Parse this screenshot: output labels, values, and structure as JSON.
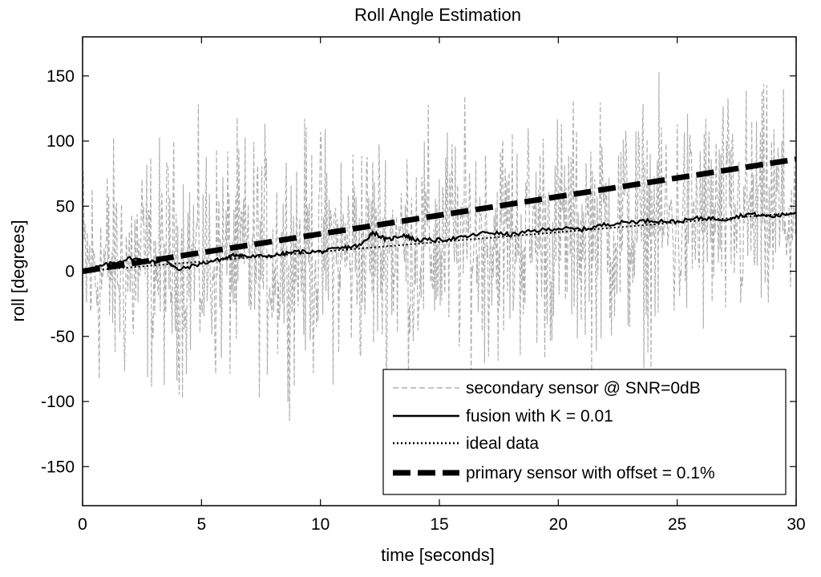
{
  "chart_data": {
    "type": "line",
    "title": "Roll Angle Estimation",
    "xlabel": "time [seconds]",
    "ylabel": "roll [degrees]",
    "xlim": [
      0,
      30
    ],
    "ylim": [
      -180,
      180
    ],
    "xticks": [
      0,
      5,
      10,
      15,
      20,
      25,
      30
    ],
    "yticks": [
      -150,
      -100,
      -50,
      0,
      50,
      100,
      150
    ],
    "grid": false,
    "legend_position": "bottom-right",
    "series": [
      {
        "name": "secondary sensor @ SNR=0dB",
        "style": "dashed",
        "color": "#b0b0b0",
        "description_values": "noisy signal around ideal roll",
        "noise_amplitude": 50,
        "x": [
          0,
          30
        ],
        "trend": [
          0,
          45
        ]
      },
      {
        "name": "fusion with K = 0.01",
        "style": "solid",
        "color": "#000000",
        "x": [
          0,
          1,
          2,
          3,
          3.5,
          4,
          5,
          6,
          6.5,
          7,
          8,
          9,
          10,
          11,
          11.7,
          12.2,
          12.8,
          13.5,
          14,
          15,
          16,
          17,
          18,
          19,
          20,
          21,
          22,
          23,
          24,
          25,
          26,
          27,
          28,
          29,
          30
        ],
        "values": [
          0,
          5,
          10,
          7,
          9,
          1,
          6,
          10,
          13,
          11,
          12,
          15,
          15,
          18,
          20,
          30,
          24,
          28,
          24,
          24,
          26,
          30,
          28,
          31,
          33,
          32,
          36,
          38,
          39,
          38,
          41,
          40,
          44,
          42,
          45
        ]
      },
      {
        "name": "ideal data",
        "style": "dotted",
        "color": "#000000",
        "x": [
          0,
          30
        ],
        "values": [
          0,
          45
        ]
      },
      {
        "name": "primary sensor with offset = 0.1%",
        "style": "thick-dashed",
        "color": "#000000",
        "x": [
          0,
          30
        ],
        "values": [
          0,
          86
        ]
      }
    ]
  }
}
